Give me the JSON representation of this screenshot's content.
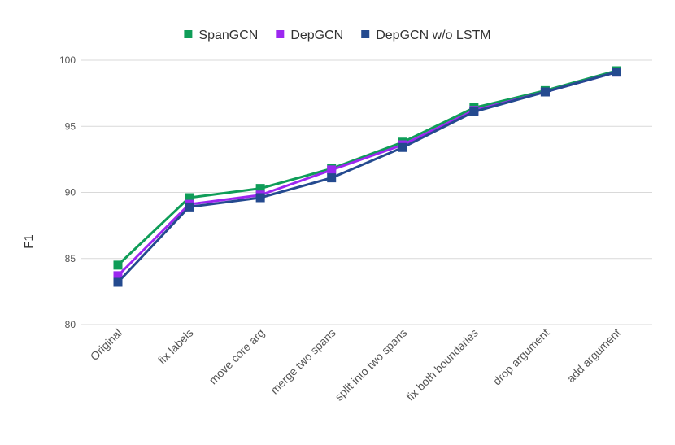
{
  "chart_data": {
    "type": "line",
    "title": "",
    "xlabel": "",
    "ylabel": "F1",
    "ylim": [
      80,
      100
    ],
    "yticks": [
      80,
      85,
      90,
      95,
      100
    ],
    "grid": true,
    "legend_position": "top-center",
    "categories": [
      "Original",
      "fix labels",
      "move core arg",
      "merge two spans",
      "split into two spans",
      "fix both boundaries",
      "drop argument",
      "add argument"
    ],
    "series": [
      {
        "name": "SpanGCN",
        "color": "#0f9d58",
        "values": [
          84.5,
          89.6,
          90.3,
          91.8,
          93.8,
          96.4,
          97.7,
          99.2
        ]
      },
      {
        "name": "DepGCN",
        "color": "#9c27f0",
        "values": [
          83.7,
          89.1,
          89.8,
          91.7,
          93.6,
          96.2,
          97.6,
          99.1
        ]
      },
      {
        "name": "DepGCN w/o LSTM",
        "color": "#244a8f",
        "values": [
          83.2,
          88.9,
          89.6,
          91.1,
          93.4,
          96.1,
          97.6,
          99.1
        ]
      }
    ]
  }
}
